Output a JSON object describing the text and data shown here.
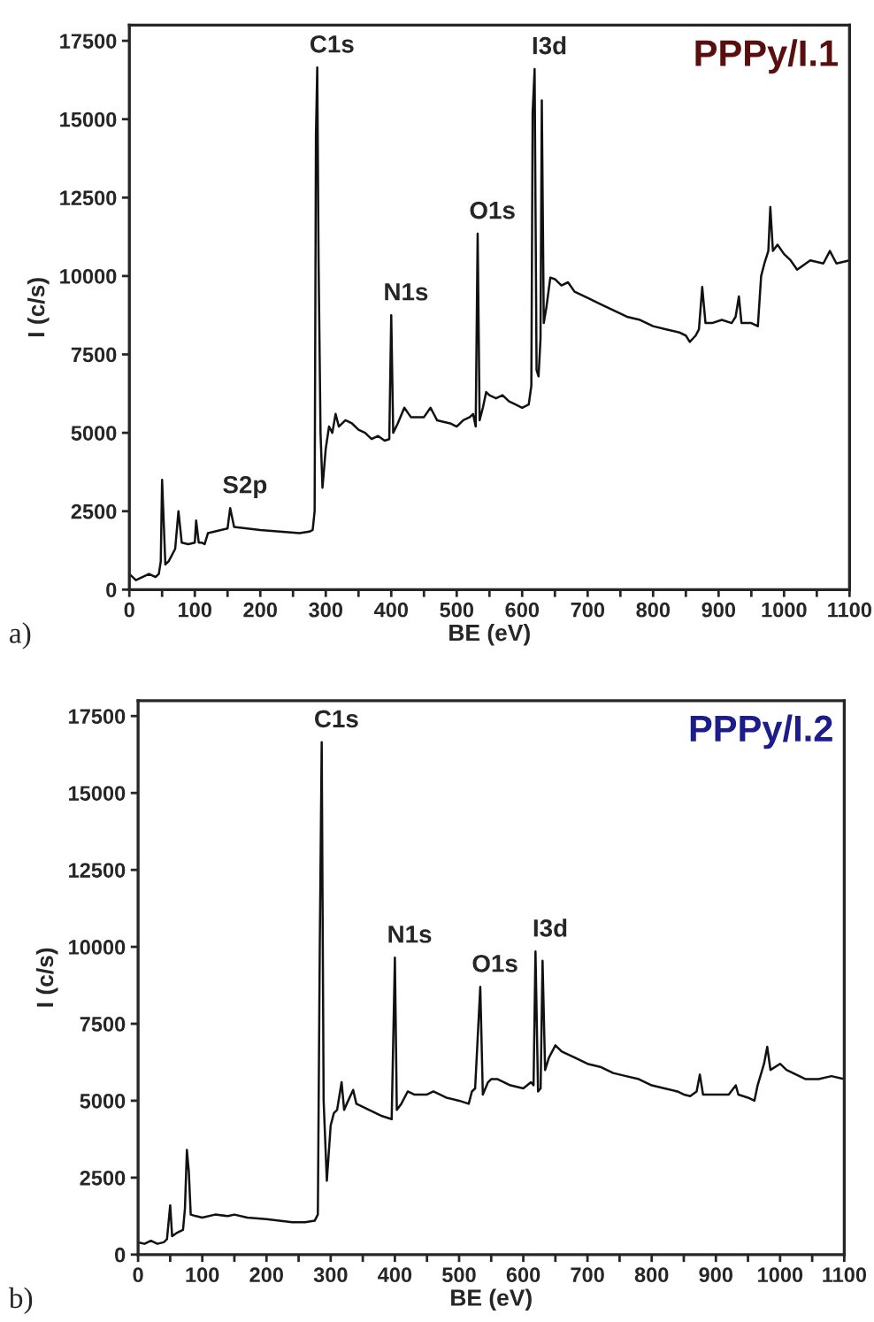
{
  "chart_data": [
    {
      "type": "line",
      "title": "PPPy/I.1",
      "xlabel": "BE (eV)",
      "ylabel": "I (c/s)",
      "xlim": [
        0,
        1100
      ],
      "ylim": [
        0,
        18000
      ],
      "xticks": [
        0,
        {
          "value": 50,
          "label": null
        },
        100,
        {
          "value": 150,
          "label": null
        },
        200,
        {
          "value": 250,
          "label": null
        },
        300,
        {
          "value": 350,
          "label": null
        },
        400,
        {
          "value": 450,
          "label": null
        },
        500,
        {
          "value": 550,
          "label": null
        },
        600,
        {
          "value": 650,
          "label": null
        },
        700,
        {
          "value": 750,
          "label": null
        },
        800,
        {
          "value": 850,
          "label": null
        },
        900,
        {
          "value": 950,
          "label": null
        },
        1000,
        {
          "value": 1050,
          "label": null
        },
        1100
      ],
      "yticks": [
        0,
        2500,
        5000,
        7500,
        10000,
        12500,
        15000,
        17500
      ],
      "grid": false,
      "legend": false,
      "marker": "none",
      "line_style": "solid",
      "series": [
        {
          "color": "#111111",
          "x": [
            0,
            10,
            30,
            40,
            45,
            48,
            50,
            55,
            60,
            70,
            75,
            80,
            90,
            100,
            102,
            106,
            110,
            115,
            120,
            130,
            150,
            154,
            160,
            180,
            200,
            230,
            260,
            275,
            280,
            283,
            285,
            287,
            289,
            292,
            295,
            300,
            305,
            310,
            315,
            320,
            330,
            340,
            350,
            360,
            370,
            380,
            390,
            397,
            400,
            403,
            410,
            420,
            430,
            450,
            460,
            470,
            490,
            500,
            510,
            520,
            525,
            529,
            532,
            535,
            540,
            545,
            550,
            560,
            570,
            580,
            590,
            600,
            610,
            614,
            616,
            619,
            622,
            625,
            628,
            630,
            633,
            637,
            643,
            650,
            660,
            670,
            680,
            700,
            720,
            740,
            760,
            780,
            800,
            820,
            840,
            850,
            856,
            865,
            870,
            875,
            880,
            890,
            905,
            920,
            926,
            931,
            935,
            950,
            960,
            965,
            970,
            976,
            979,
            983,
            990,
            1000,
            1010,
            1020,
            1040,
            1060,
            1070,
            1080,
            1100
          ],
          "values": [
            500,
            300,
            500,
            400,
            500,
            900,
            3500,
            800,
            900,
            1300,
            2500,
            1500,
            1450,
            1500,
            2200,
            1500,
            1500,
            1450,
            1800,
            1850,
            1950,
            2600,
            2000,
            1950,
            1900,
            1850,
            1800,
            1850,
            1900,
            2500,
            14500,
            16650,
            10500,
            5000,
            3250,
            4500,
            5200,
            5000,
            5600,
            5200,
            5400,
            5300,
            5100,
            5000,
            4800,
            4900,
            4750,
            4800,
            8750,
            5000,
            5300,
            5800,
            5500,
            5500,
            5800,
            5400,
            5300,
            5200,
            5400,
            5500,
            5600,
            5200,
            11350,
            5400,
            5800,
            6300,
            6200,
            6100,
            6200,
            6000,
            5900,
            5800,
            5900,
            6500,
            15200,
            16600,
            7000,
            6800,
            8000,
            15600,
            8500,
            9000,
            9950,
            9900,
            9700,
            9800,
            9500,
            9300,
            9100,
            8900,
            8700,
            8600,
            8400,
            8300,
            8200,
            8100,
            7900,
            8100,
            8300,
            9650,
            8500,
            8500,
            8600,
            8500,
            8700,
            9350,
            8500,
            8500,
            8400,
            10000,
            10400,
            10800,
            12200,
            10800,
            11000,
            10700,
            10500,
            10200,
            10500,
            10400,
            10800,
            10400,
            10500
          ]
        }
      ],
      "annotations": [
        {
          "text": "C1s",
          "x": 287,
          "y": 16650
        },
        {
          "text": "I3d",
          "x": 619,
          "y": 16600
        },
        {
          "text": "O1s",
          "x": 532,
          "y": 11350
        },
        {
          "text": "N1s",
          "x": 400,
          "y": 8750
        },
        {
          "text": "S2p",
          "x": 154,
          "y": 2600
        },
        "a)"
      ]
    },
    {
      "type": "line",
      "title": "PPPy/I.2",
      "xlabel": "BE (eV)",
      "ylabel": "I (c/s)",
      "xlim": [
        0,
        1100
      ],
      "ylim": [
        0,
        18000
      ],
      "xticks": [
        0,
        {
          "value": 50,
          "label": null
        },
        100,
        {
          "value": 150,
          "label": null
        },
        200,
        {
          "value": 250,
          "label": null
        },
        300,
        {
          "value": 350,
          "label": null
        },
        400,
        {
          "value": 450,
          "label": null
        },
        500,
        {
          "value": 550,
          "label": null
        },
        600,
        {
          "value": 650,
          "label": null
        },
        700,
        {
          "value": 750,
          "label": null
        },
        800,
        {
          "value": 850,
          "label": null
        },
        900,
        {
          "value": 950,
          "label": null
        },
        1000,
        {
          "value": 1050,
          "label": null
        },
        1100
      ],
      "yticks": [
        0,
        2500,
        5000,
        7500,
        10000,
        12500,
        15000,
        17500
      ],
      "grid": false,
      "legend": false,
      "marker": "none",
      "line_style": "solid",
      "series": [
        {
          "color": "#111111",
          "x": [
            0,
            10,
            20,
            30,
            40,
            45,
            50,
            53,
            60,
            70,
            73,
            76,
            79,
            82,
            90,
            100,
            120,
            140,
            150,
            170,
            200,
            220,
            240,
            260,
            275,
            280,
            283,
            286,
            289,
            294,
            300,
            305,
            310,
            317,
            321,
            325,
            335,
            340,
            350,
            360,
            370,
            380,
            395,
            400,
            403,
            410,
            420,
            430,
            450,
            460,
            480,
            500,
            515,
            520,
            525,
            533,
            537,
            545,
            550,
            560,
            580,
            600,
            612,
            616,
            619,
            623,
            627,
            630,
            634,
            640,
            650,
            660,
            680,
            700,
            720,
            740,
            760,
            780,
            800,
            820,
            840,
            850,
            860,
            870,
            875,
            880,
            900,
            920,
            931,
            935,
            950,
            960,
            965,
            975,
            980,
            985,
            1000,
            1010,
            1020,
            1040,
            1060,
            1080,
            1100
          ],
          "values": [
            400,
            350,
            450,
            350,
            400,
            500,
            1600,
            600,
            700,
            800,
            1500,
            3400,
            2700,
            1300,
            1250,
            1200,
            1300,
            1250,
            1300,
            1200,
            1150,
            1100,
            1050,
            1050,
            1100,
            1300,
            10000,
            16650,
            5000,
            2400,
            4200,
            4600,
            4700,
            5600,
            4700,
            4900,
            5350,
            4900,
            4800,
            4700,
            4600,
            4500,
            4400,
            9650,
            4700,
            4900,
            5300,
            5200,
            5200,
            5300,
            5100,
            5000,
            4900,
            5300,
            5400,
            8700,
            5200,
            5600,
            5700,
            5700,
            5500,
            5400,
            5600,
            5500,
            9850,
            5300,
            5400,
            9550,
            6000,
            6400,
            6800,
            6600,
            6400,
            6200,
            6100,
            5900,
            5800,
            5700,
            5500,
            5400,
            5300,
            5200,
            5150,
            5300,
            5850,
            5200,
            5200,
            5200,
            5500,
            5200,
            5100,
            5000,
            5500,
            6200,
            6750,
            6000,
            6200,
            6000,
            5900,
            5700,
            5700,
            5800,
            5700
          ]
        }
      ],
      "annotations": [
        {
          "text": "C1s",
          "x": 286,
          "y": 16650
        },
        {
          "text": "N1s",
          "x": 400,
          "y": 9650
        },
        {
          "text": "O1s",
          "x": 533,
          "y": 8700
        },
        {
          "text": "I3d",
          "x": 619,
          "y": 9850
        },
        "b)"
      ]
    }
  ]
}
